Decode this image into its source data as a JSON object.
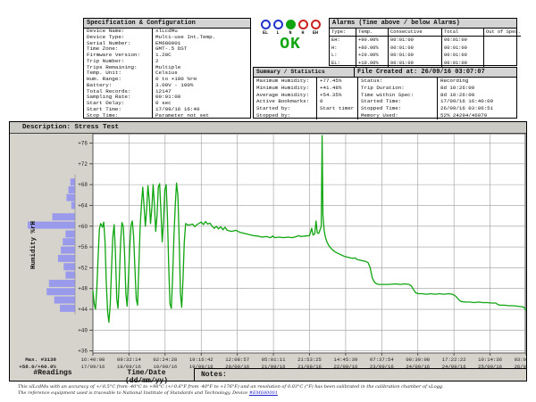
{
  "spec": {
    "title": "Specification & Configuration",
    "rows": [
      {
        "label": "Device Name:",
        "value": "xlLcdMu"
      },
      {
        "label": "Device Type:",
        "value": "Multi-use Int.Temp."
      },
      {
        "label": "Serial Number:",
        "value": "EM680001"
      },
      {
        "label": "Time Zone:",
        "value": "GMT-.5 DST"
      },
      {
        "label": "Firmware Version:",
        "value": "1.20C"
      },
      {
        "label": "Trip Number:",
        "value": "2"
      },
      {
        "label": "Trips Remaining:",
        "value": "Multiple"
      },
      {
        "label": "Temp. Unit:",
        "value": "Celsius"
      },
      {
        "label": "Hum. Range:",
        "value": "0 to +100 %rH"
      },
      {
        "label": "Battery:",
        "value": "3.00V - 100%"
      },
      {
        "label": "Total Records:",
        "value": "12147"
      },
      {
        "label": "Sampling Rate:",
        "value": "00:01:00"
      },
      {
        "label": "Start Delay:",
        "value": "0 sec"
      },
      {
        "label": "Start Time:",
        "value": "17/09/16 16:40"
      },
      {
        "label": "Stop Time:",
        "value": "Parameter not set"
      }
    ]
  },
  "lcd": {
    "status": "OK",
    "status_color": "#11a511",
    "indicators": [
      {
        "label": "EL",
        "color": "#2233cc",
        "filled": false
      },
      {
        "label": "L",
        "color": "#2233cc",
        "filled": false
      },
      {
        "label": "N",
        "color": "#11a511",
        "filled": true
      },
      {
        "label": "H",
        "color": "#cc2222",
        "filled": false
      },
      {
        "label": "EH",
        "color": "#cc2222",
        "filled": false
      }
    ]
  },
  "alarms": {
    "title": "Alarms (Time above / below Alarms)",
    "headers": [
      "Type:",
      "Temp.",
      "Consecutive",
      "Total",
      "Out of Spec."
    ],
    "rows": [
      [
        "EH:",
        "+90.00%",
        "00:01:00",
        "00:01:00",
        ""
      ],
      [
        "H:",
        "+80.00%",
        "00:01:00",
        "00:01:00",
        ""
      ],
      [
        "L:",
        "+20.00%",
        "00:01:00",
        "00:01:00",
        ""
      ],
      [
        "EL:",
        "+10.00%",
        "00:01:00",
        "00:01:00",
        ""
      ]
    ]
  },
  "summary": {
    "title": "Summary / Statistics",
    "file_title": "File Created at: 26/09/16 03:07:07",
    "left": [
      {
        "label": "Maximum Humidity:",
        "value": "+77.45%"
      },
      {
        "label": "Minimum Humidity:",
        "value": "+41.48%"
      },
      {
        "label": "Average Humidity:",
        "value": "+54.35%"
      },
      {
        "label": "Active Bookmarks:",
        "value": "0"
      },
      {
        "label": "Started by:",
        "value": "Start timer"
      },
      {
        "label": "Stopped by:",
        "value": ""
      }
    ],
    "right": [
      {
        "label": "Status:",
        "value": "Recording"
      },
      {
        "label": "Trip Duration:",
        "value": "8d 10:26:00"
      },
      {
        "label": "Time within Spec:",
        "value": "8d 10:26:00"
      },
      {
        "label": "Started Time:",
        "value": "17/09/16 16:40:00"
      },
      {
        "label": "Stopped Time:",
        "value": "26/09/16 03:06:51"
      },
      {
        "label": "Memory Used:",
        "value": "52% 24294/46079"
      }
    ]
  },
  "chart": {
    "description": "Description: Stress Test"
  },
  "chart_data": {
    "type": "line",
    "title": "Stress Test",
    "ylabel": "Humidity %rH",
    "ylim": [
      36,
      76
    ],
    "grid": true,
    "line_color": "#0fa50f",
    "histogram_color": "#9a9aec",
    "yticks": [
      "+76",
      "+72",
      "+68",
      "+64",
      "+60",
      "+56",
      "+52",
      "+48",
      "+44",
      "+40",
      "+36"
    ],
    "xticks": [
      {
        "time": "16:40:00",
        "date": "17/09/16"
      },
      {
        "time": "09:32:14",
        "date": "18/09/16"
      },
      {
        "time": "02:24:28",
        "date": "19/09/16"
      },
      {
        "time": "19:16:42",
        "date": "19/09/16"
      },
      {
        "time": "12:08:57",
        "date": "20/09/16"
      },
      {
        "time": "05:01:11",
        "date": "21/09/16"
      },
      {
        "time": "21:53:25",
        "date": "21/09/16"
      },
      {
        "time": "14:45:39",
        "date": "22/09/16"
      },
      {
        "time": "07:37:54",
        "date": "23/09/16"
      },
      {
        "time": "00:30:08",
        "date": "24/09/16"
      },
      {
        "time": "17:22:22",
        "date": "24/09/16"
      },
      {
        "time": "10:14:36",
        "date": "25/09/16"
      },
      {
        "time": "03:06:51",
        "date": "26/09/16"
      }
    ],
    "max_readout": {
      "line1": "Max. #3138",
      "line2": "+58.0/+60.0%"
    },
    "histogram_bins": [
      [
        68.5,
        0.1
      ],
      [
        67,
        0.14
      ],
      [
        65.5,
        0.18
      ],
      [
        64,
        0.08
      ],
      [
        61.8,
        0.48
      ],
      [
        60.2,
        1.0
      ],
      [
        58.5,
        0.2
      ],
      [
        57,
        0.26
      ],
      [
        55.4,
        0.3
      ],
      [
        53.8,
        0.36
      ],
      [
        52.2,
        0.24
      ],
      [
        50.6,
        0.2
      ],
      [
        49,
        0.55
      ],
      [
        47.4,
        0.6
      ],
      [
        45.8,
        0.44
      ],
      [
        44.2,
        0.32
      ]
    ],
    "series": [
      {
        "name": "Humidity %rH",
        "points": [
          [
            0,
            47.6
          ],
          [
            0.003,
            45
          ],
          [
            0.006,
            44
          ],
          [
            0.009,
            48
          ],
          [
            0.012,
            54
          ],
          [
            0.015,
            59.5
          ],
          [
            0.018,
            60.5
          ],
          [
            0.022,
            59.8
          ],
          [
            0.025,
            60.8
          ],
          [
            0.028,
            57
          ],
          [
            0.031,
            49
          ],
          [
            0.034,
            43.5
          ],
          [
            0.037,
            41.5
          ],
          [
            0.04,
            45
          ],
          [
            0.043,
            52
          ],
          [
            0.046,
            58
          ],
          [
            0.049,
            60.3
          ],
          [
            0.052,
            55
          ],
          [
            0.055,
            46
          ],
          [
            0.058,
            44.2
          ],
          [
            0.061,
            50
          ],
          [
            0.064,
            57
          ],
          [
            0.067,
            60.7
          ],
          [
            0.07,
            60
          ],
          [
            0.073,
            55
          ],
          [
            0.076,
            47
          ],
          [
            0.079,
            44.6
          ],
          [
            0.082,
            50
          ],
          [
            0.085,
            56
          ],
          [
            0.088,
            60.2
          ],
          [
            0.091,
            61
          ],
          [
            0.094,
            58
          ],
          [
            0.097,
            52
          ],
          [
            0.1,
            46
          ],
          [
            0.103,
            44.8
          ],
          [
            0.106,
            52
          ],
          [
            0.109,
            60
          ],
          [
            0.112,
            64
          ],
          [
            0.115,
            67.5
          ],
          [
            0.118,
            64
          ],
          [
            0.121,
            60
          ],
          [
            0.124,
            63
          ],
          [
            0.127,
            67.8
          ],
          [
            0.13,
            65
          ],
          [
            0.133,
            60.5
          ],
          [
            0.136,
            63.5
          ],
          [
            0.139,
            68
          ],
          [
            0.142,
            64
          ],
          [
            0.145,
            59
          ],
          [
            0.148,
            62
          ],
          [
            0.151,
            67.5
          ],
          [
            0.154,
            68.2
          ],
          [
            0.157,
            63
          ],
          [
            0.16,
            57
          ],
          [
            0.163,
            61
          ],
          [
            0.166,
            67
          ],
          [
            0.169,
            68
          ],
          [
            0.172,
            62
          ],
          [
            0.175,
            52
          ],
          [
            0.178,
            45
          ],
          [
            0.181,
            44.2
          ],
          [
            0.184,
            50
          ],
          [
            0.187,
            58
          ],
          [
            0.19,
            64
          ],
          [
            0.193,
            68.3
          ],
          [
            0.196,
            66
          ],
          [
            0.199,
            58
          ],
          [
            0.202,
            47
          ],
          [
            0.205,
            44.4
          ],
          [
            0.208,
            50
          ],
          [
            0.211,
            57
          ],
          [
            0.214,
            60.5
          ],
          [
            0.22,
            60.2
          ],
          [
            0.23,
            60.4
          ],
          [
            0.235,
            59.9
          ],
          [
            0.24,
            60.3
          ],
          [
            0.25,
            60.8
          ],
          [
            0.255,
            60.3
          ],
          [
            0.26,
            60.9
          ],
          [
            0.265,
            60.4
          ],
          [
            0.27,
            60.6
          ],
          [
            0.275,
            60
          ],
          [
            0.28,
            59.6
          ],
          [
            0.285,
            60
          ],
          [
            0.29,
            59.5
          ],
          [
            0.295,
            59.9
          ],
          [
            0.3,
            59.3
          ],
          [
            0.305,
            59.8
          ],
          [
            0.31,
            59.2
          ],
          [
            0.32,
            59
          ],
          [
            0.33,
            59.2
          ],
          [
            0.34,
            58.8
          ],
          [
            0.35,
            58.6
          ],
          [
            0.36,
            58.4
          ],
          [
            0.37,
            58.2
          ],
          [
            0.38,
            58.1
          ],
          [
            0.39,
            57.9
          ],
          [
            0.4,
            58
          ],
          [
            0.41,
            57.8
          ],
          [
            0.415,
            58.1
          ],
          [
            0.42,
            57.8
          ],
          [
            0.43,
            57.9
          ],
          [
            0.44,
            57.8
          ],
          [
            0.45,
            57.9
          ],
          [
            0.46,
            57.8
          ],
          [
            0.47,
            58
          ],
          [
            0.475,
            58.2
          ],
          [
            0.48,
            58
          ],
          [
            0.49,
            58.1
          ],
          [
            0.5,
            58.2
          ],
          [
            0.505,
            59.6
          ],
          [
            0.508,
            58.3
          ],
          [
            0.512,
            58.5
          ],
          [
            0.515,
            61
          ],
          [
            0.518,
            58.7
          ],
          [
            0.521,
            58.6
          ],
          [
            0.524,
            59.2
          ],
          [
            0.527,
            60
          ],
          [
            0.529,
            77.45
          ],
          [
            0.531,
            62
          ],
          [
            0.534,
            59
          ],
          [
            0.537,
            57.8
          ],
          [
            0.54,
            57
          ],
          [
            0.545,
            56.2
          ],
          [
            0.55,
            55.7
          ],
          [
            0.555,
            55.3
          ],
          [
            0.56,
            55
          ],
          [
            0.57,
            54.6
          ],
          [
            0.58,
            54.2
          ],
          [
            0.59,
            54
          ],
          [
            0.6,
            53.8
          ],
          [
            0.605,
            53.9
          ],
          [
            0.61,
            53.6
          ],
          [
            0.62,
            53.4
          ],
          [
            0.63,
            53.2
          ],
          [
            0.635,
            53
          ],
          [
            0.64,
            52
          ],
          [
            0.645,
            50
          ],
          [
            0.65,
            49.2
          ],
          [
            0.655,
            48.9
          ],
          [
            0.66,
            48.8
          ],
          [
            0.68,
            48.8
          ],
          [
            0.7,
            48.9
          ],
          [
            0.71,
            48.8
          ],
          [
            0.72,
            48.9
          ],
          [
            0.73,
            48.8
          ],
          [
            0.735,
            48.5
          ],
          [
            0.74,
            47.8
          ],
          [
            0.745,
            47.2
          ],
          [
            0.75,
            47
          ],
          [
            0.76,
            47
          ],
          [
            0.77,
            46.9
          ],
          [
            0.78,
            47
          ],
          [
            0.79,
            46.9
          ],
          [
            0.8,
            47
          ],
          [
            0.81,
            46.9
          ],
          [
            0.82,
            47
          ],
          [
            0.83,
            46.9
          ],
          [
            0.838,
            46.5
          ],
          [
            0.845,
            45.8
          ],
          [
            0.85,
            45.5
          ],
          [
            0.86,
            45.4
          ],
          [
            0.87,
            45.4
          ],
          [
            0.88,
            45.3
          ],
          [
            0.89,
            45.4
          ],
          [
            0.9,
            45.3
          ],
          [
            0.91,
            45.3
          ],
          [
            0.92,
            45.2
          ],
          [
            0.93,
            45.2
          ],
          [
            0.935,
            44.9
          ],
          [
            0.94,
            44.8
          ],
          [
            0.95,
            44.8
          ],
          [
            0.96,
            44.7
          ],
          [
            0.97,
            44.7
          ],
          [
            0.98,
            44.6
          ],
          [
            0.99,
            44.5
          ],
          [
            0.995,
            44.4
          ],
          [
            1,
            43.8
          ]
        ]
      }
    ]
  },
  "bottom": {
    "readings": "#Readings",
    "timedate": "Time/Date (dd/mm/yy)",
    "notes": "Notes:"
  },
  "footer": {
    "line1": "This xlLcdMu with an accuracy of +/-0.5°C from -40°C to +98°C (+/-0.6°F from -40°F to +176°F) and an resolution of 0.03°C (°F) has been calibrated in the calibration chamber of xLogg.",
    "line2": "The reference equipment used is traceable to National Institute of Standards and Technology. Device ",
    "device_link": "#EM680001"
  }
}
